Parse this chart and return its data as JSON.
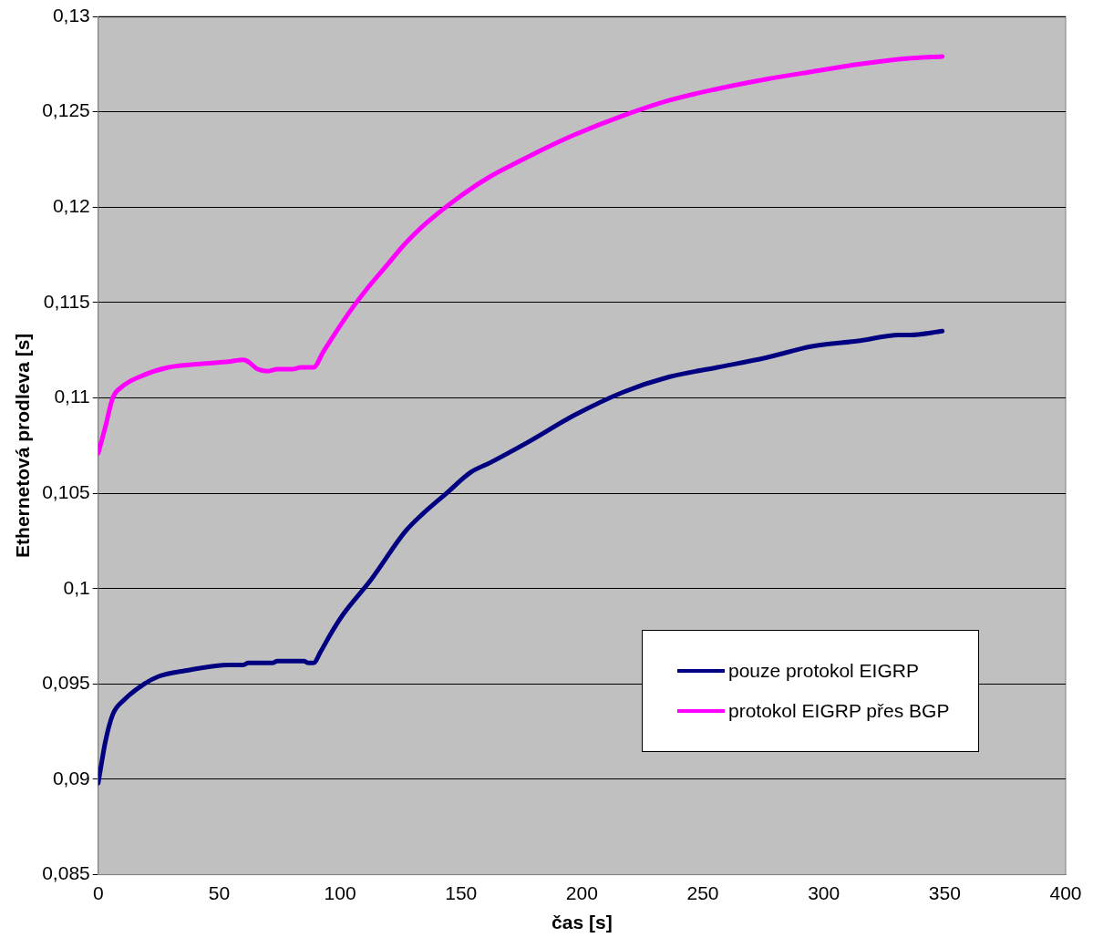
{
  "chart_data": {
    "type": "line",
    "xlabel": "čas [s]",
    "ylabel": "Ethernetová prodleva [s]",
    "xlim": [
      0,
      400
    ],
    "xticks": [
      0,
      50,
      100,
      150,
      200,
      250,
      300,
      350,
      400
    ],
    "ylim": [
      0.085,
      0.13
    ],
    "yticks": [
      {
        "value": 0.085,
        "label": "0,085"
      },
      {
        "value": 0.09,
        "label": "0,09"
      },
      {
        "value": 0.095,
        "label": "0,095"
      },
      {
        "value": 0.1,
        "label": "0,1"
      },
      {
        "value": 0.105,
        "label": "0,105"
      },
      {
        "value": 0.11,
        "label": "0,11"
      },
      {
        "value": 0.115,
        "label": "0,115"
      },
      {
        "value": 0.12,
        "label": "0,12"
      },
      {
        "value": 0.125,
        "label": "0,125"
      },
      {
        "value": 0.13,
        "label": "0,13"
      }
    ],
    "grid": "y",
    "legend": "bottom right",
    "marker": "none",
    "line_style": "solid",
    "series": [
      {
        "name": "pouze protokol EIGRP",
        "color": "#000080",
        "x": [
          0,
          3,
          6,
          11,
          19,
          25,
          36,
          54,
          60,
          62,
          72,
          74,
          85,
          87,
          89,
          92,
          96,
          101,
          113,
          127,
          134,
          144,
          154,
          162,
          178,
          197,
          217,
          236,
          256,
          276,
          295,
          315,
          331,
          336,
          349
        ],
        "values": [
          0.0898,
          0.092,
          0.0934,
          0.0942,
          0.095,
          0.0954,
          0.0957,
          0.096,
          0.096,
          0.0961,
          0.0961,
          0.0962,
          0.0962,
          0.0961,
          0.0961,
          0.0967,
          0.0976,
          0.0986,
          0.1005,
          0.103,
          0.1039,
          0.105,
          0.1061,
          0.1066,
          0.1077,
          0.1091,
          0.1103,
          0.1111,
          0.1116,
          0.1121,
          0.1127,
          0.113,
          0.1133,
          0.1133,
          0.1135
        ]
      },
      {
        "name": "protokol EIGRP přes BGP",
        "color": "#ff00ff",
        "x": [
          0,
          3,
          6,
          10,
          17,
          29,
          44,
          54,
          60,
          62,
          66,
          70,
          74,
          80,
          84,
          89,
          93,
          97,
          105,
          111,
          119,
          127,
          136,
          150,
          162,
          174,
          185,
          197,
          217,
          236,
          256,
          276,
          295,
          315,
          335,
          349
        ],
        "values": [
          0.1071,
          0.1085,
          0.11,
          0.1106,
          0.1111,
          0.1116,
          0.1118,
          0.1119,
          0.112,
          0.1119,
          0.1115,
          0.1114,
          0.1115,
          0.1115,
          0.1116,
          0.1116,
          0.1124,
          0.1132,
          0.1147,
          0.1157,
          0.1169,
          0.1181,
          0.1192,
          0.1206,
          0.1216,
          0.1224,
          0.1231,
          0.1238,
          0.1248,
          0.1256,
          0.1262,
          0.1267,
          0.1271,
          0.1275,
          0.1278,
          0.1279
        ]
      }
    ]
  }
}
